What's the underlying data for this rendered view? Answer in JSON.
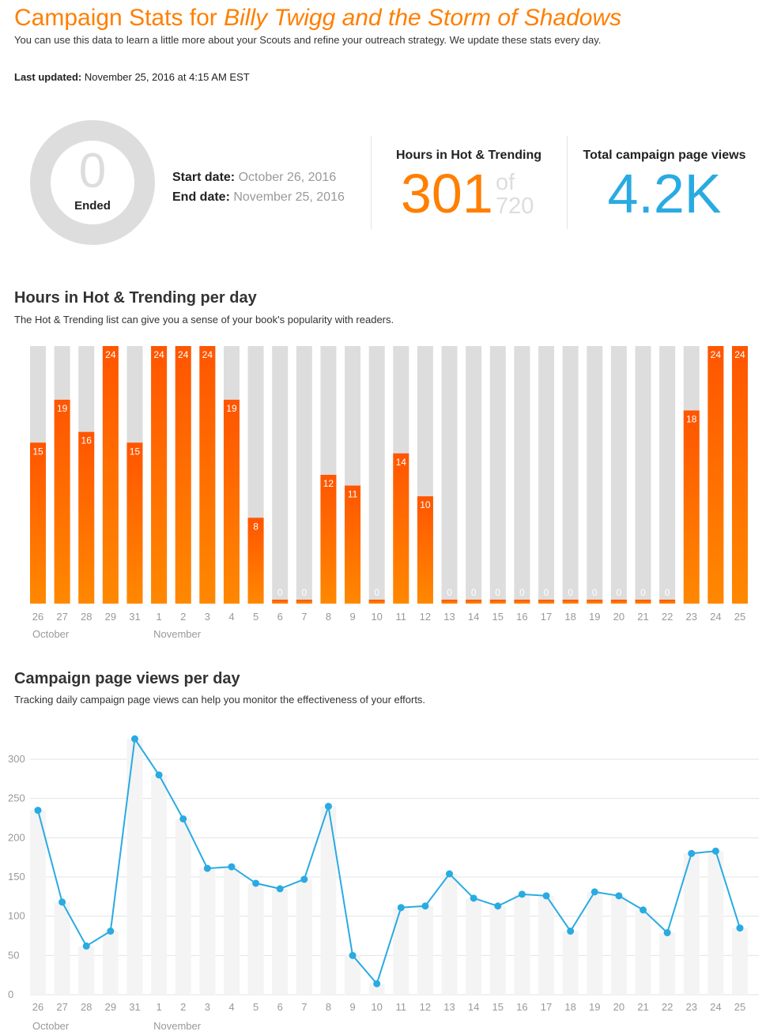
{
  "header": {
    "title_prefix": "Campaign Stats for ",
    "book_title": "Billy Twigg and the Storm of Shadows",
    "subtitle": "You can use this data to learn a little more about your Scouts and refine your outreach strategy. We update these stats every day.",
    "last_updated_label": "Last updated:",
    "last_updated_value": "November 25, 2016 at 4:15 AM EST"
  },
  "summary": {
    "days_left": "0",
    "status": "Ended",
    "start_label": "Start date:",
    "start_value": "October 26, 2016",
    "end_label": "End date:",
    "end_value": "November 25, 2016",
    "hot_label": "Hours in Hot & Trending",
    "hot_value": "301",
    "hot_of": "of",
    "hot_total": "720",
    "views_label": "Total campaign page views",
    "views_value": "4.2K"
  },
  "colors": {
    "accent_orange": "#ff7f00",
    "bar_orange_top": "#ff5500",
    "bar_orange_bottom": "#ff8800",
    "bar_grey": "#dddddd",
    "line_blue": "#29abe2",
    "text_grey": "#999999"
  },
  "sections": {
    "hot": {
      "title": "Hours in Hot & Trending per day",
      "subtitle": "The Hot & Trending list can give you a sense of your book's popularity with readers."
    },
    "views": {
      "title": "Campaign page views per day",
      "subtitle": "Tracking daily campaign page views can help you monitor the effectiveness of your efforts."
    }
  },
  "chart_data": [
    {
      "type": "bar",
      "title": "Hours in Hot & Trending per day",
      "categories": [
        "26",
        "27",
        "28",
        "29",
        "31",
        "1",
        "2",
        "3",
        "4",
        "5",
        "6",
        "7",
        "8",
        "9",
        "10",
        "11",
        "12",
        "13",
        "14",
        "15",
        "16",
        "17",
        "18",
        "19",
        "20",
        "21",
        "22",
        "23",
        "24",
        "25"
      ],
      "month_labels": [
        {
          "index": 0,
          "label": "October"
        },
        {
          "index": 5,
          "label": "November"
        }
      ],
      "values": [
        15,
        19,
        16,
        24,
        15,
        24,
        24,
        24,
        19,
        8,
        0,
        0,
        12,
        11,
        0,
        14,
        10,
        0,
        0,
        0,
        0,
        0,
        0,
        0,
        0,
        0,
        0,
        18,
        24,
        24
      ],
      "max": 24,
      "data_labels": true
    },
    {
      "type": "line",
      "title": "Campaign page views per day",
      "categories": [
        "26",
        "27",
        "28",
        "29",
        "31",
        "1",
        "2",
        "3",
        "4",
        "5",
        "6",
        "7",
        "8",
        "9",
        "10",
        "11",
        "12",
        "13",
        "14",
        "15",
        "16",
        "17",
        "18",
        "19",
        "20",
        "21",
        "22",
        "23",
        "24",
        "25"
      ],
      "month_labels": [
        {
          "index": 0,
          "label": "October"
        },
        {
          "index": 5,
          "label": "November"
        }
      ],
      "values": [
        235,
        118,
        62,
        81,
        326,
        280,
        224,
        161,
        163,
        142,
        135,
        147,
        240,
        50,
        14,
        111,
        113,
        154,
        123,
        113,
        128,
        126,
        81,
        131,
        126,
        108,
        79,
        180,
        183,
        85
      ],
      "yticks": [
        0,
        50,
        100,
        150,
        200,
        250,
        300
      ],
      "ylim": [
        0,
        330
      ],
      "grid": true
    }
  ]
}
